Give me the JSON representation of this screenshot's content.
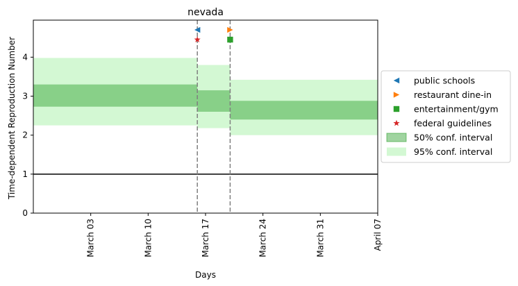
{
  "chart_data": {
    "type": "line",
    "title": "nevada",
    "xlabel": "Days",
    "ylabel": "Time-dependent Reproduction Number",
    "x_range": [
      "2020-02-25",
      "2020-04-07"
    ],
    "ylim": [
      0,
      4.95
    ],
    "x_ticks": [
      {
        "date": "2020-03-03",
        "label": "March 03"
      },
      {
        "date": "2020-03-10",
        "label": "March 10"
      },
      {
        "date": "2020-03-17",
        "label": "March 17"
      },
      {
        "date": "2020-03-24",
        "label": "March 24"
      },
      {
        "date": "2020-03-31",
        "label": "March 31"
      },
      {
        "date": "2020-04-07",
        "label": "April 07"
      }
    ],
    "y_ticks": [
      0,
      1,
      2,
      3,
      4
    ],
    "grid": false,
    "legend_position": "right, outside plot",
    "reference_line": {
      "y": 1,
      "color": "#000000"
    },
    "intervention_lines": [
      "2020-03-16",
      "2020-03-20"
    ],
    "intervals": [
      {
        "start": "2020-02-25",
        "end": "2020-03-16",
        "ci50": [
          2.73,
          3.3
        ],
        "ci95": [
          2.25,
          3.98
        ]
      },
      {
        "start": "2020-03-16",
        "end": "2020-03-20",
        "ci50": [
          2.6,
          3.15
        ],
        "ci95": [
          2.18,
          3.8
        ]
      },
      {
        "start": "2020-03-20",
        "end": "2020-04-07",
        "ci50": [
          2.4,
          2.88
        ],
        "ci95": [
          2.0,
          3.42
        ]
      }
    ],
    "markers": [
      {
        "name": "public schools",
        "date": "2020-03-16",
        "y": 4.7,
        "shape": "triangle-left",
        "color": "#1f77b4"
      },
      {
        "name": "restaurant dine-in",
        "date": "2020-03-20",
        "y": 4.7,
        "shape": "triangle-right",
        "color": "#ff7f0e"
      },
      {
        "name": "entertainment/gym",
        "date": "2020-03-20",
        "y": 4.45,
        "shape": "square",
        "color": "#2ca02c"
      },
      {
        "name": "federal guidelines",
        "date": "2020-03-16",
        "y": 4.45,
        "shape": "star",
        "color": "#d62728"
      }
    ],
    "legend": [
      {
        "label": "public schools",
        "shape": "triangle-left",
        "color": "#1f77b4"
      },
      {
        "label": "restaurant dine-in",
        "shape": "triangle-right",
        "color": "#ff7f0e"
      },
      {
        "label": "entertainment/gym",
        "shape": "square",
        "color": "#2ca02c"
      },
      {
        "label": "federal guidelines",
        "shape": "star",
        "color": "#d62728"
      },
      {
        "label": "50% conf. interval",
        "shape": "patch",
        "color": "#2ca02c"
      },
      {
        "label": "95% conf. interval",
        "shape": "patch",
        "color": "#90ee90"
      }
    ],
    "colors": {
      "ci50": "#2ca02c",
      "ci95": "#90ee90",
      "intervention_line": "#7f7f7f"
    }
  }
}
